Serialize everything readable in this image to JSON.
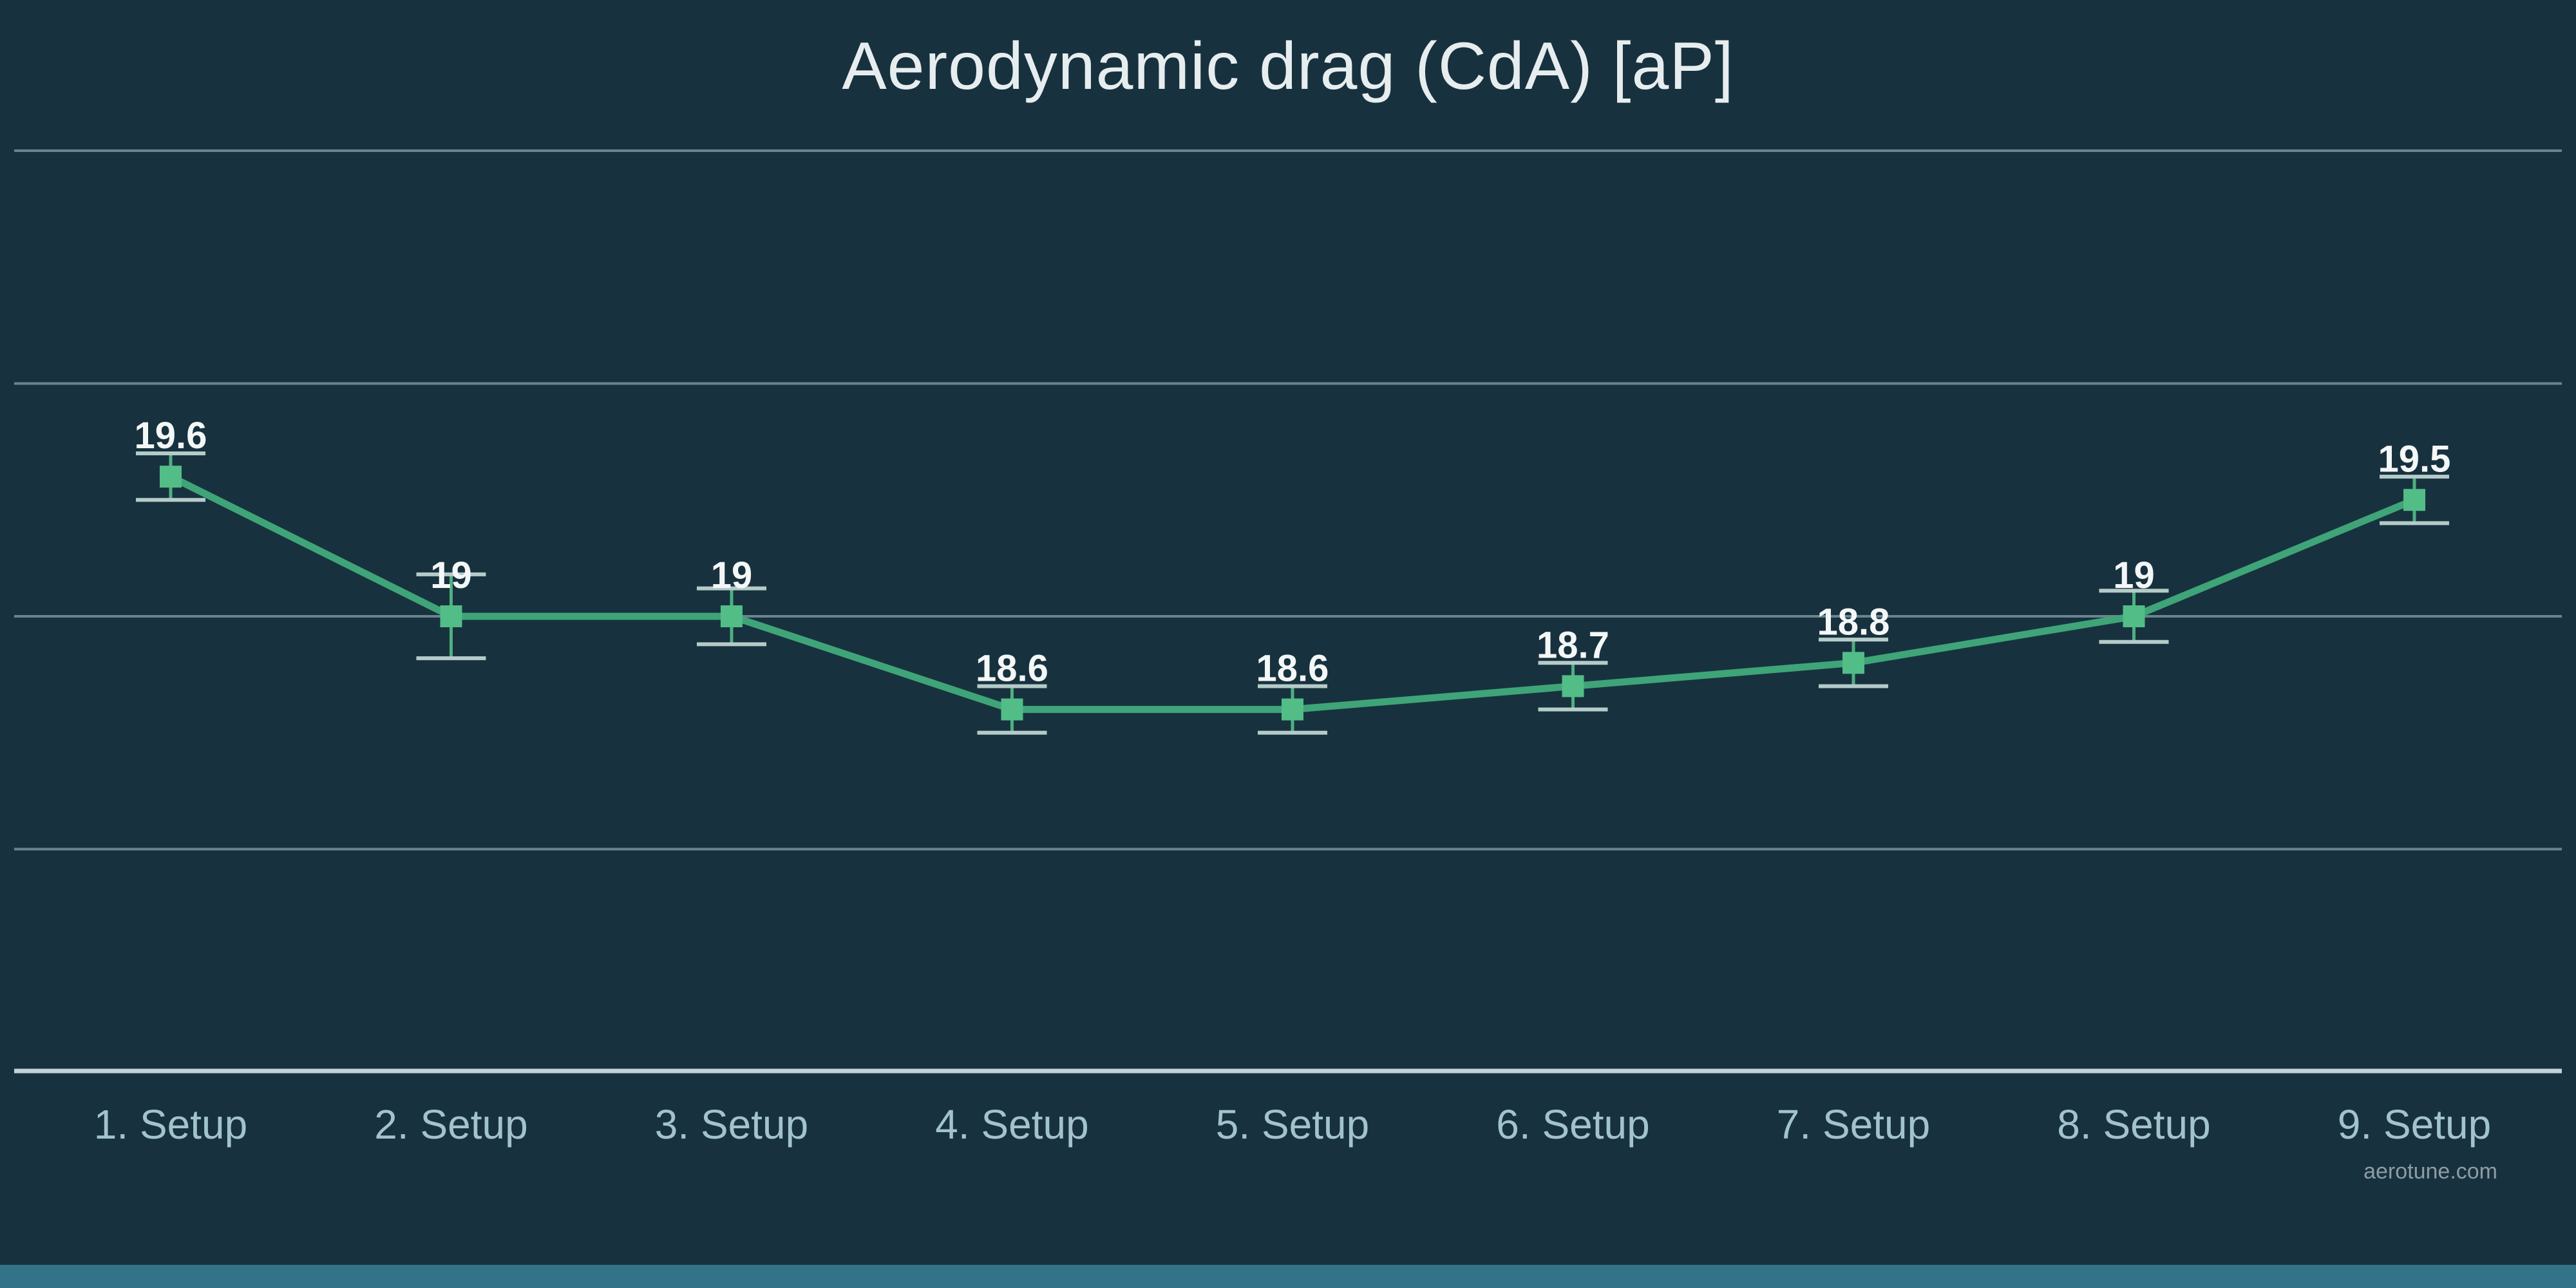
{
  "title": "Aerodynamic drag (CdA) [aP]",
  "watermark": "aerotune.com",
  "colors": {
    "background": "#17323E",
    "title_text": "#E7EDEF",
    "line": "#3FA478",
    "marker": "#52BD87",
    "error_stem": "#4FAF80",
    "error_cap": "#B5CBC9",
    "gridline": "#7E99A2",
    "axis_line": "#C3D2D8",
    "data_label": "#F4F7F7",
    "x_label": "#A2C3CC",
    "watermark_text": "#8E9CA4",
    "footer_bar": "#327389"
  },
  "chart_data": {
    "type": "line",
    "title": "Aerodynamic drag (CdA) [aP]",
    "categories": [
      "1. Setup",
      "2. Setup",
      "3. Setup",
      "4. Setup",
      "5. Setup",
      "6. Setup",
      "7. Setup",
      "8. Setup",
      "9. Setup"
    ],
    "series": [
      {
        "name": "CdA",
        "values": [
          19.6,
          19,
          19,
          18.6,
          18.6,
          18.7,
          18.8,
          19,
          19.5
        ],
        "errors": [
          0.1,
          0.18,
          0.12,
          0.1,
          0.1,
          0.1,
          0.1,
          0.11,
          0.1
        ],
        "data_labels": [
          "19.6",
          "19",
          "19",
          "18.6",
          "18.6",
          "18.7",
          "18.8",
          "19",
          "19.5"
        ]
      }
    ],
    "xlabel": "",
    "ylabel": "",
    "ylim": [
      17,
      21.9
    ],
    "gridlines_y": [
      21,
      20,
      19,
      18
    ],
    "y_axis_labels_visible": false,
    "legend": "none",
    "marker": "square",
    "error_bars": true,
    "grid": true
  }
}
